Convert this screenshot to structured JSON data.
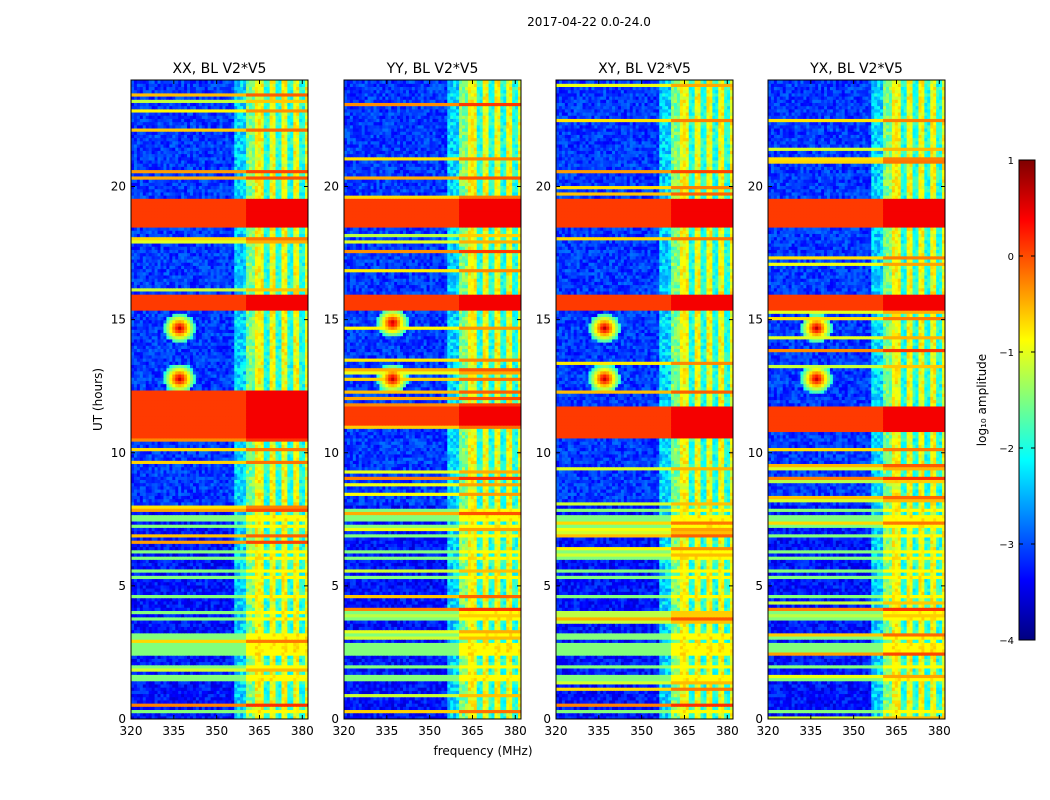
{
  "figure_title": "2017-04-22 0.0-24.0",
  "colors": {
    "background": "#ffffff",
    "axis": "#000000",
    "cmap": [
      "#00007f",
      "#0000ff",
      "#007fff",
      "#00ffff",
      "#7fff7f",
      "#ffff00",
      "#ff7f00",
      "#ff0000",
      "#7f0000"
    ]
  },
  "chart_data": [
    {
      "type": "heatmap",
      "title": "XX, BL V2*V5",
      "xlabel": "",
      "ylabel": "UT (hours)",
      "xlim": [
        320,
        382
      ],
      "ylim": [
        0,
        24
      ],
      "x_ticks": [
        320,
        335,
        350,
        365,
        380
      ],
      "y_ticks": [
        0,
        5,
        10,
        15,
        20
      ],
      "rfi_band_mhz": [
        360,
        382
      ],
      "strong_hours": [
        [
          18.5,
          19.6
        ],
        [
          10.6,
          12.3
        ],
        [
          15.4,
          16.0
        ]
      ],
      "spot_hours": [
        12.8,
        14.7
      ]
    },
    {
      "type": "heatmap",
      "title": "YY, BL V2*V5",
      "xlabel": "frequency (MHz)",
      "ylabel": "",
      "xlim": [
        320,
        382
      ],
      "ylim": [
        0,
        24
      ],
      "x_ticks": [
        320,
        335,
        350,
        365,
        380
      ],
      "y_ticks": [
        0,
        5,
        10,
        15,
        20
      ],
      "rfi_band_mhz": [
        360,
        382
      ],
      "strong_hours": [
        [
          18.5,
          19.6
        ],
        [
          11.0,
          11.8
        ],
        [
          15.4,
          16.0
        ]
      ],
      "spot_hours": [
        12.8,
        14.9
      ]
    },
    {
      "type": "heatmap",
      "title": "XY, BL V2*V5",
      "xlabel": "",
      "ylabel": "",
      "xlim": [
        320,
        382
      ],
      "ylim": [
        0,
        24
      ],
      "x_ticks": [
        320,
        335,
        350,
        365,
        380
      ],
      "y_ticks": [
        0,
        5,
        10,
        15,
        20
      ],
      "rfi_band_mhz": [
        360,
        382
      ],
      "strong_hours": [
        [
          18.5,
          19.6
        ],
        [
          10.6,
          11.8
        ],
        [
          15.4,
          16.0
        ]
      ],
      "spot_hours": [
        12.8,
        14.7
      ]
    },
    {
      "type": "heatmap",
      "title": "YX, BL V2*V5",
      "xlabel": "",
      "ylabel": "",
      "xlim": [
        320,
        382
      ],
      "ylim": [
        0,
        24
      ],
      "x_ticks": [
        320,
        335,
        350,
        365,
        380
      ],
      "y_ticks": [
        0,
        5,
        10,
        15,
        20
      ],
      "rfi_band_mhz": [
        360,
        382
      ],
      "strong_hours": [
        [
          18.5,
          19.6
        ],
        [
          10.8,
          11.8
        ],
        [
          15.4,
          16.0
        ]
      ],
      "spot_hours": [
        12.8,
        14.7
      ]
    }
  ],
  "colorbar": {
    "label": "log₁₀ amplitude",
    "range": [
      -4,
      1
    ],
    "ticks": [
      1,
      0,
      -1,
      -2,
      -3,
      -4
    ],
    "tick_labels": [
      "1",
      "0",
      "−1",
      "−2",
      "−3",
      "−4"
    ]
  }
}
